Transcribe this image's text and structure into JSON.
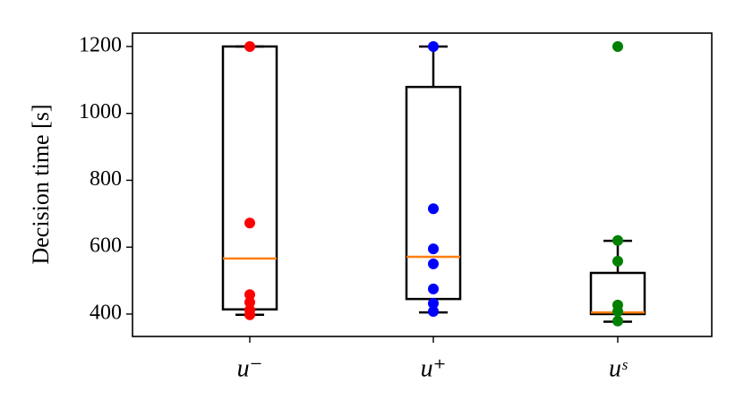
{
  "chart_data": {
    "type": "box",
    "ylabel": "Decision time [s]",
    "categories": [
      "u⁻",
      "u⁺",
      "uˢ"
    ],
    "median_color": "#ff7f0e",
    "boxes": [
      {
        "whislo": 398,
        "q1": 414,
        "med": 566,
        "q3": 1200,
        "whishi": 1200,
        "color": "#ff0000",
        "points": [
          1200,
          672,
          458,
          435,
          412,
          398
        ]
      },
      {
        "whislo": 405,
        "q1": 445,
        "med": 571,
        "q3": 1079,
        "whishi": 1200,
        "color": "#0000ff",
        "points": [
          1200,
          715,
          595,
          550,
          475,
          432,
          408
        ]
      },
      {
        "whislo": 377,
        "q1": 400,
        "med": 405,
        "q3": 523,
        "whishi": 619,
        "color": "#008000",
        "points": [
          1200,
          620,
          558,
          427,
          408,
          379
        ]
      }
    ],
    "ylim": [
      333,
      1240
    ],
    "yticks": [
      400,
      600,
      800,
      1000,
      1200
    ]
  }
}
